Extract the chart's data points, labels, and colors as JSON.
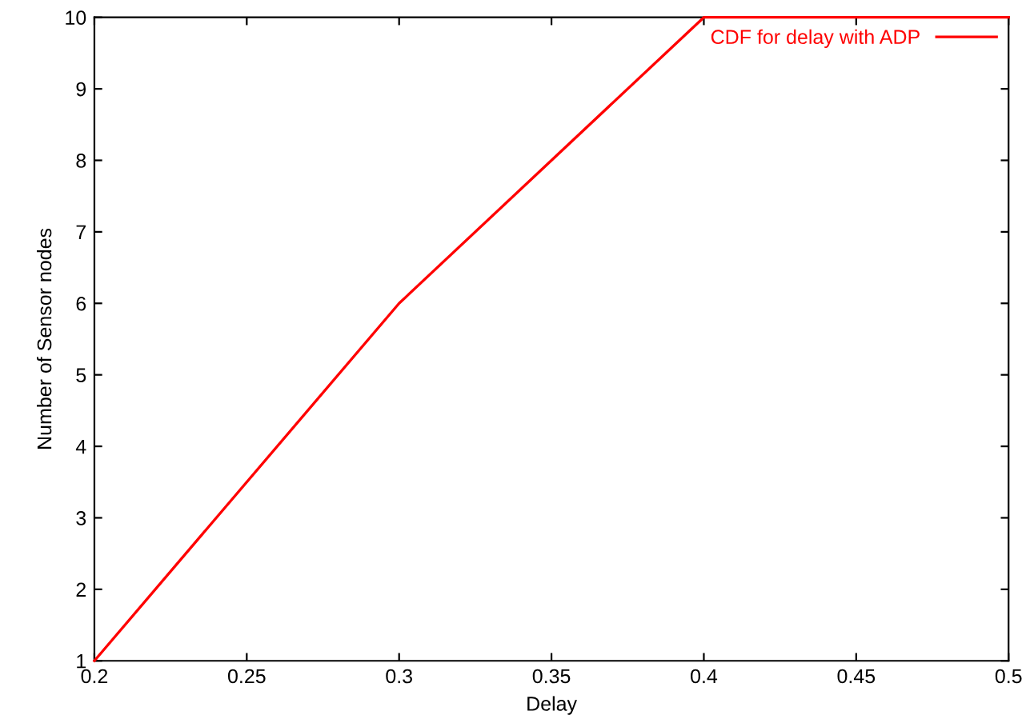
{
  "chart_data": {
    "type": "line",
    "xlabel": "Delay",
    "ylabel": "Number of Sensor nodes",
    "x": [
      0.2,
      0.3,
      0.4,
      0.5
    ],
    "series": [
      {
        "name": "CDF for delay with ADP",
        "color": "#ff0000",
        "values": [
          1,
          6,
          10,
          10
        ]
      }
    ],
    "xlim": [
      0.2,
      0.5
    ],
    "xticks": [
      0.2,
      0.25,
      0.3,
      0.35,
      0.4,
      0.45,
      0.5
    ],
    "ylim": [
      1,
      10
    ],
    "yticks": [
      1,
      2,
      3,
      4,
      5,
      6,
      7,
      8,
      9,
      10
    ],
    "legend": "top right",
    "grid": false,
    "marker": "none",
    "line_style": "solid"
  }
}
